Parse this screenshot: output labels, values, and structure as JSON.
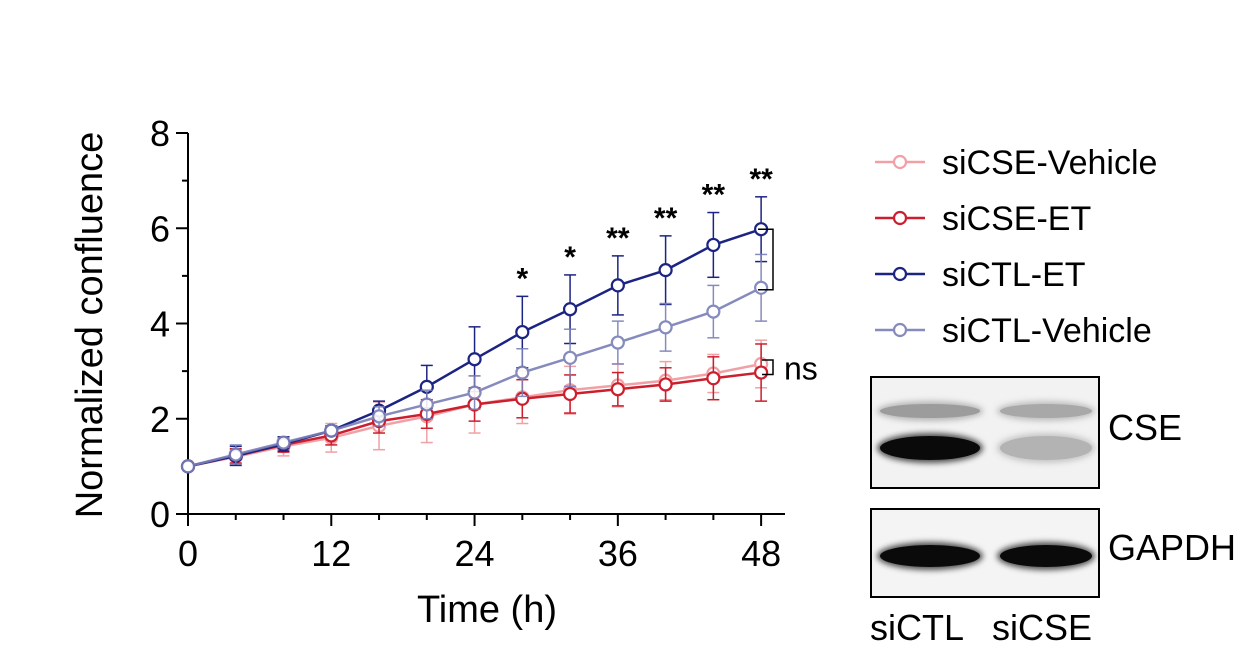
{
  "chart_data": {
    "type": "line",
    "xlabel": "Time (h)",
    "ylabel": "Normalized confluence",
    "xlim": [
      0,
      50
    ],
    "ylim": [
      0,
      8
    ],
    "x_ticks": [
      0,
      12,
      24,
      36,
      48
    ],
    "y_ticks": [
      0,
      2,
      4,
      6,
      8
    ],
    "x": [
      0,
      4,
      8,
      12,
      16,
      20,
      24,
      28,
      32,
      36,
      40,
      44,
      48
    ],
    "series": [
      {
        "name": "siCSE-Vehicle",
        "color": "#ee8a8f",
        "opacity": 0.8,
        "values": [
          1.0,
          1.2,
          1.42,
          1.6,
          1.85,
          2.05,
          2.3,
          2.45,
          2.6,
          2.7,
          2.8,
          2.95,
          3.15
        ],
        "errors": [
          0.05,
          0.15,
          0.2,
          0.3,
          0.5,
          0.55,
          0.6,
          0.55,
          0.5,
          0.45,
          0.4,
          0.4,
          0.5
        ]
      },
      {
        "name": "siCSE-ET",
        "color": "#cc1f2e",
        "opacity": 1,
        "values": [
          1.0,
          1.22,
          1.45,
          1.65,
          1.95,
          2.1,
          2.3,
          2.42,
          2.52,
          2.62,
          2.72,
          2.85,
          2.97
        ],
        "errors": [
          0.05,
          0.15,
          0.15,
          0.2,
          0.25,
          0.3,
          0.35,
          0.4,
          0.4,
          0.35,
          0.35,
          0.45,
          0.6
        ]
      },
      {
        "name": "siCTL-ET",
        "color": "#1c2483",
        "opacity": 1,
        "values": [
          1.0,
          1.22,
          1.47,
          1.75,
          2.17,
          2.67,
          3.25,
          3.82,
          4.3,
          4.8,
          5.12,
          5.65,
          5.98
        ],
        "errors": [
          0.05,
          0.2,
          0.15,
          0.1,
          0.2,
          0.45,
          0.68,
          0.75,
          0.72,
          0.62,
          0.72,
          0.68,
          0.68
        ]
      },
      {
        "name": "siCTL-Vehicle",
        "color": "#7a7fb8",
        "opacity": 0.9,
        "values": [
          1.0,
          1.25,
          1.5,
          1.75,
          2.05,
          2.3,
          2.55,
          2.97,
          3.28,
          3.6,
          3.92,
          4.25,
          4.75
        ],
        "errors": [
          0.05,
          0.2,
          0.1,
          0.1,
          0.2,
          0.3,
          0.35,
          0.5,
          0.6,
          0.45,
          0.5,
          0.55,
          0.7
        ]
      }
    ],
    "significance": [
      {
        "x": 28,
        "label": "*"
      },
      {
        "x": 32,
        "label": "*"
      },
      {
        "x": 36,
        "label": "**"
      },
      {
        "x": 40,
        "label": "**"
      },
      {
        "x": 44,
        "label": "**"
      },
      {
        "x": 48,
        "label": "**"
      }
    ],
    "bracket_upper": {
      "from": 4.75,
      "to": 5.98,
      "label": ""
    },
    "bracket_lower": {
      "from": 2.97,
      "to": 3.15,
      "label": "ns"
    },
    "legend_position": "right"
  },
  "blot": {
    "rows": [
      {
        "label": "CSE",
        "bands": [
          {
            "lane": "siCTL",
            "kind": "upper",
            "intensity": 0.35
          },
          {
            "lane": "siCTL",
            "kind": "lower",
            "intensity": 1.0
          },
          {
            "lane": "siCSE",
            "kind": "upper",
            "intensity": 0.3
          },
          {
            "lane": "siCSE",
            "kind": "lower",
            "intensity": 0.25
          }
        ]
      },
      {
        "label": "GAPDH",
        "bands": [
          {
            "lane": "siCTL",
            "kind": "single",
            "intensity": 1.0
          },
          {
            "lane": "siCSE",
            "kind": "single",
            "intensity": 1.0
          }
        ]
      }
    ],
    "lane_labels": [
      "siCTL",
      "siCSE"
    ]
  }
}
